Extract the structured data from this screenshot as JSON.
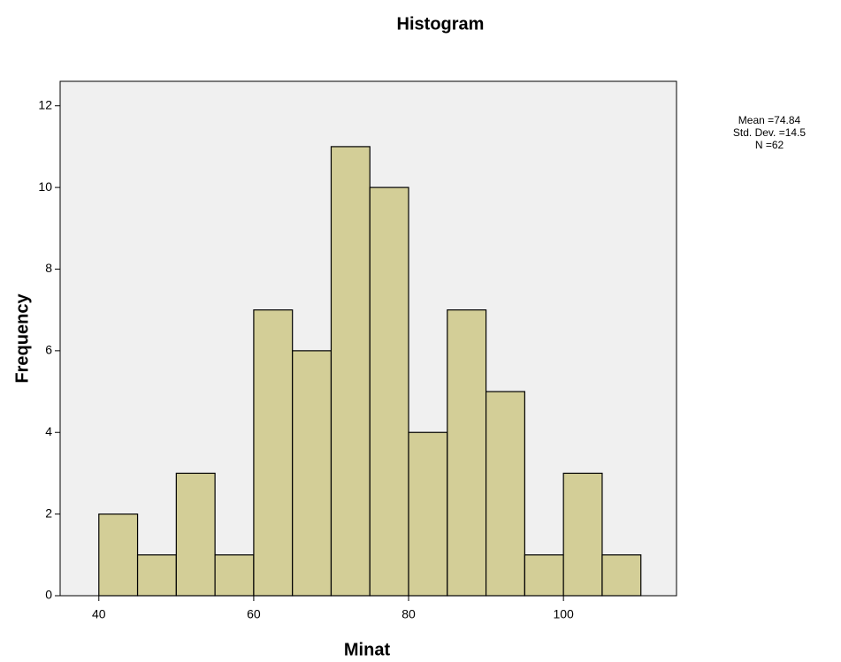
{
  "chart_data": {
    "type": "histogram",
    "title": "Histogram",
    "xlabel": "Minat",
    "ylabel": "Frequency",
    "bins": [
      40,
      45,
      50,
      55,
      60,
      65,
      70,
      75,
      80,
      85,
      90,
      95,
      100,
      105,
      110
    ],
    "counts": [
      2,
      1,
      3,
      1,
      7,
      6,
      11,
      10,
      4,
      7,
      5,
      1,
      3,
      1
    ],
    "color": "#d3ce97",
    "xlim": [
      35,
      114.6
    ],
    "ylim": [
      0,
      12.6
    ],
    "xticks": [
      40,
      60,
      80,
      100
    ],
    "yticks": [
      0,
      2,
      4,
      6,
      8,
      10,
      12
    ],
    "annotations": [
      "Mean =74.84",
      "Std. Dev. =14.5",
      "N =62"
    ]
  }
}
